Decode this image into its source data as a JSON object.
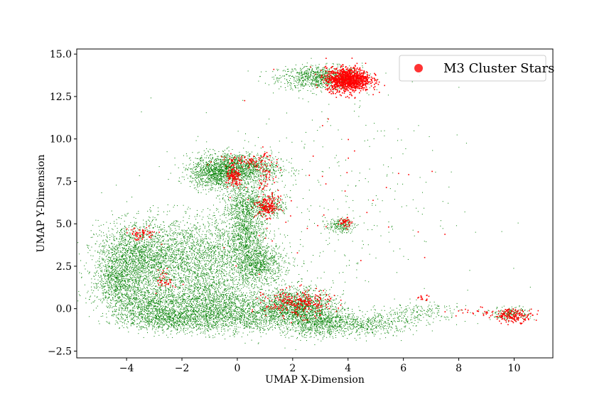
{
  "chart_data": {
    "type": "scatter",
    "title": "",
    "xlabel": "UMAP X-Dimension",
    "ylabel": "UMAP Y-Dimension",
    "xlim": [
      -5.8,
      11.4
    ],
    "ylim": [
      -2.9,
      15.3
    ],
    "x_ticks": [
      -4,
      -2,
      0,
      2,
      4,
      6,
      8,
      10
    ],
    "x_tick_labels": [
      "−4",
      "−2",
      "0",
      "2",
      "4",
      "6",
      "8",
      "10"
    ],
    "y_ticks": [
      -2.5,
      0.0,
      2.5,
      5.0,
      7.5,
      10.0,
      12.5,
      15.0
    ],
    "y_tick_labels": [
      "−2.5",
      "0.0",
      "2.5",
      "5.0",
      "7.5",
      "10.0",
      "12.5",
      "15.0"
    ],
    "grid": false,
    "legend_position": "top-right",
    "series": [
      {
        "role": "background",
        "color": "#008000",
        "regions": [
          {
            "cx": 3.0,
            "cy": 13.6,
            "sx": 0.75,
            "sy": 0.35,
            "n": 900
          },
          {
            "cx": 0.0,
            "cy": 8.3,
            "sx": 0.75,
            "sy": 0.45,
            "n": 1400
          },
          {
            "cx": -0.8,
            "cy": 7.9,
            "sx": 0.45,
            "sy": 0.45,
            "n": 700
          },
          {
            "cx": 0.4,
            "cy": 6.2,
            "sx": 0.45,
            "sy": 0.6,
            "n": 700
          },
          {
            "cx": 0.3,
            "cy": 4.4,
            "sx": 0.35,
            "sy": 0.9,
            "n": 700
          },
          {
            "cx": 0.8,
            "cy": 2.6,
            "sx": 0.45,
            "sy": 0.6,
            "n": 700
          },
          {
            "cx": -1.6,
            "cy": 3.0,
            "sx": 1.4,
            "sy": 1.2,
            "n": 2600
          },
          {
            "cx": -3.7,
            "cy": 3.0,
            "sx": 0.7,
            "sy": 1.0,
            "n": 1500
          },
          {
            "cx": -4.4,
            "cy": 1.6,
            "sx": 0.4,
            "sy": 0.6,
            "n": 500
          },
          {
            "cx": -3.3,
            "cy": 0.3,
            "sx": 0.8,
            "sy": 0.6,
            "n": 1000
          },
          {
            "cx": -2.2,
            "cy": -0.6,
            "sx": 0.9,
            "sy": 0.4,
            "n": 1000
          },
          {
            "cx": -1.0,
            "cy": 0.5,
            "sx": 0.9,
            "sy": 0.6,
            "n": 1000
          },
          {
            "cx": 0.2,
            "cy": -0.5,
            "sx": 0.9,
            "sy": 0.5,
            "n": 900
          },
          {
            "cx": 2.1,
            "cy": 0.1,
            "sx": 0.7,
            "sy": 0.55,
            "n": 1500
          },
          {
            "cx": 3.0,
            "cy": -0.8,
            "sx": 0.6,
            "sy": 0.45,
            "n": 700
          },
          {
            "cx": 4.6,
            "cy": -0.9,
            "sx": 0.9,
            "sy": 0.35,
            "n": 500
          },
          {
            "cx": 6.6,
            "cy": -0.2,
            "sx": 0.9,
            "sy": 0.3,
            "n": 200
          },
          {
            "cx": 3.7,
            "cy": 4.9,
            "sx": 0.25,
            "sy": 0.2,
            "n": 200
          },
          {
            "cx": 1.3,
            "cy": 6.0,
            "sx": 0.25,
            "sy": 0.3,
            "n": 150
          },
          {
            "cx": 9.9,
            "cy": -0.3,
            "sx": 0.35,
            "sy": 0.2,
            "n": 200
          },
          {
            "cx": 3.0,
            "cy": 6.0,
            "sx": 2.5,
            "sy": 3.5,
            "n": 350
          }
        ]
      },
      {
        "role": "highlight",
        "name": "M3 Cluster Stars",
        "color": "#ff0000",
        "regions": [
          {
            "cx": 4.0,
            "cy": 13.5,
            "sx": 0.4,
            "sy": 0.35,
            "n": 1100
          },
          {
            "cx": -0.1,
            "cy": 7.7,
            "sx": 0.15,
            "sy": 0.3,
            "n": 120
          },
          {
            "cx": 0.3,
            "cy": 8.7,
            "sx": 0.5,
            "sy": 0.2,
            "n": 80
          },
          {
            "cx": 1.0,
            "cy": 8.0,
            "sx": 0.15,
            "sy": 0.6,
            "n": 60
          },
          {
            "cx": 1.1,
            "cy": 6.0,
            "sx": 0.2,
            "sy": 0.3,
            "n": 160
          },
          {
            "cx": -3.5,
            "cy": 4.4,
            "sx": 0.3,
            "sy": 0.2,
            "n": 60
          },
          {
            "cx": -2.6,
            "cy": 1.7,
            "sx": 0.15,
            "sy": 0.3,
            "n": 40
          },
          {
            "cx": 2.2,
            "cy": 0.3,
            "sx": 0.6,
            "sy": 0.4,
            "n": 260
          },
          {
            "cx": 3.9,
            "cy": 5.1,
            "sx": 0.12,
            "sy": 0.12,
            "n": 40
          },
          {
            "cx": 6.7,
            "cy": 0.6,
            "sx": 0.15,
            "sy": 0.1,
            "n": 15
          },
          {
            "cx": 10.0,
            "cy": -0.4,
            "sx": 0.35,
            "sy": 0.2,
            "n": 160
          },
          {
            "cx": 8.8,
            "cy": -0.2,
            "sx": 0.6,
            "sy": 0.15,
            "n": 30
          },
          {
            "cx": 3.0,
            "cy": 7.0,
            "sx": 2.0,
            "sy": 3.0,
            "n": 50
          }
        ]
      }
    ]
  }
}
